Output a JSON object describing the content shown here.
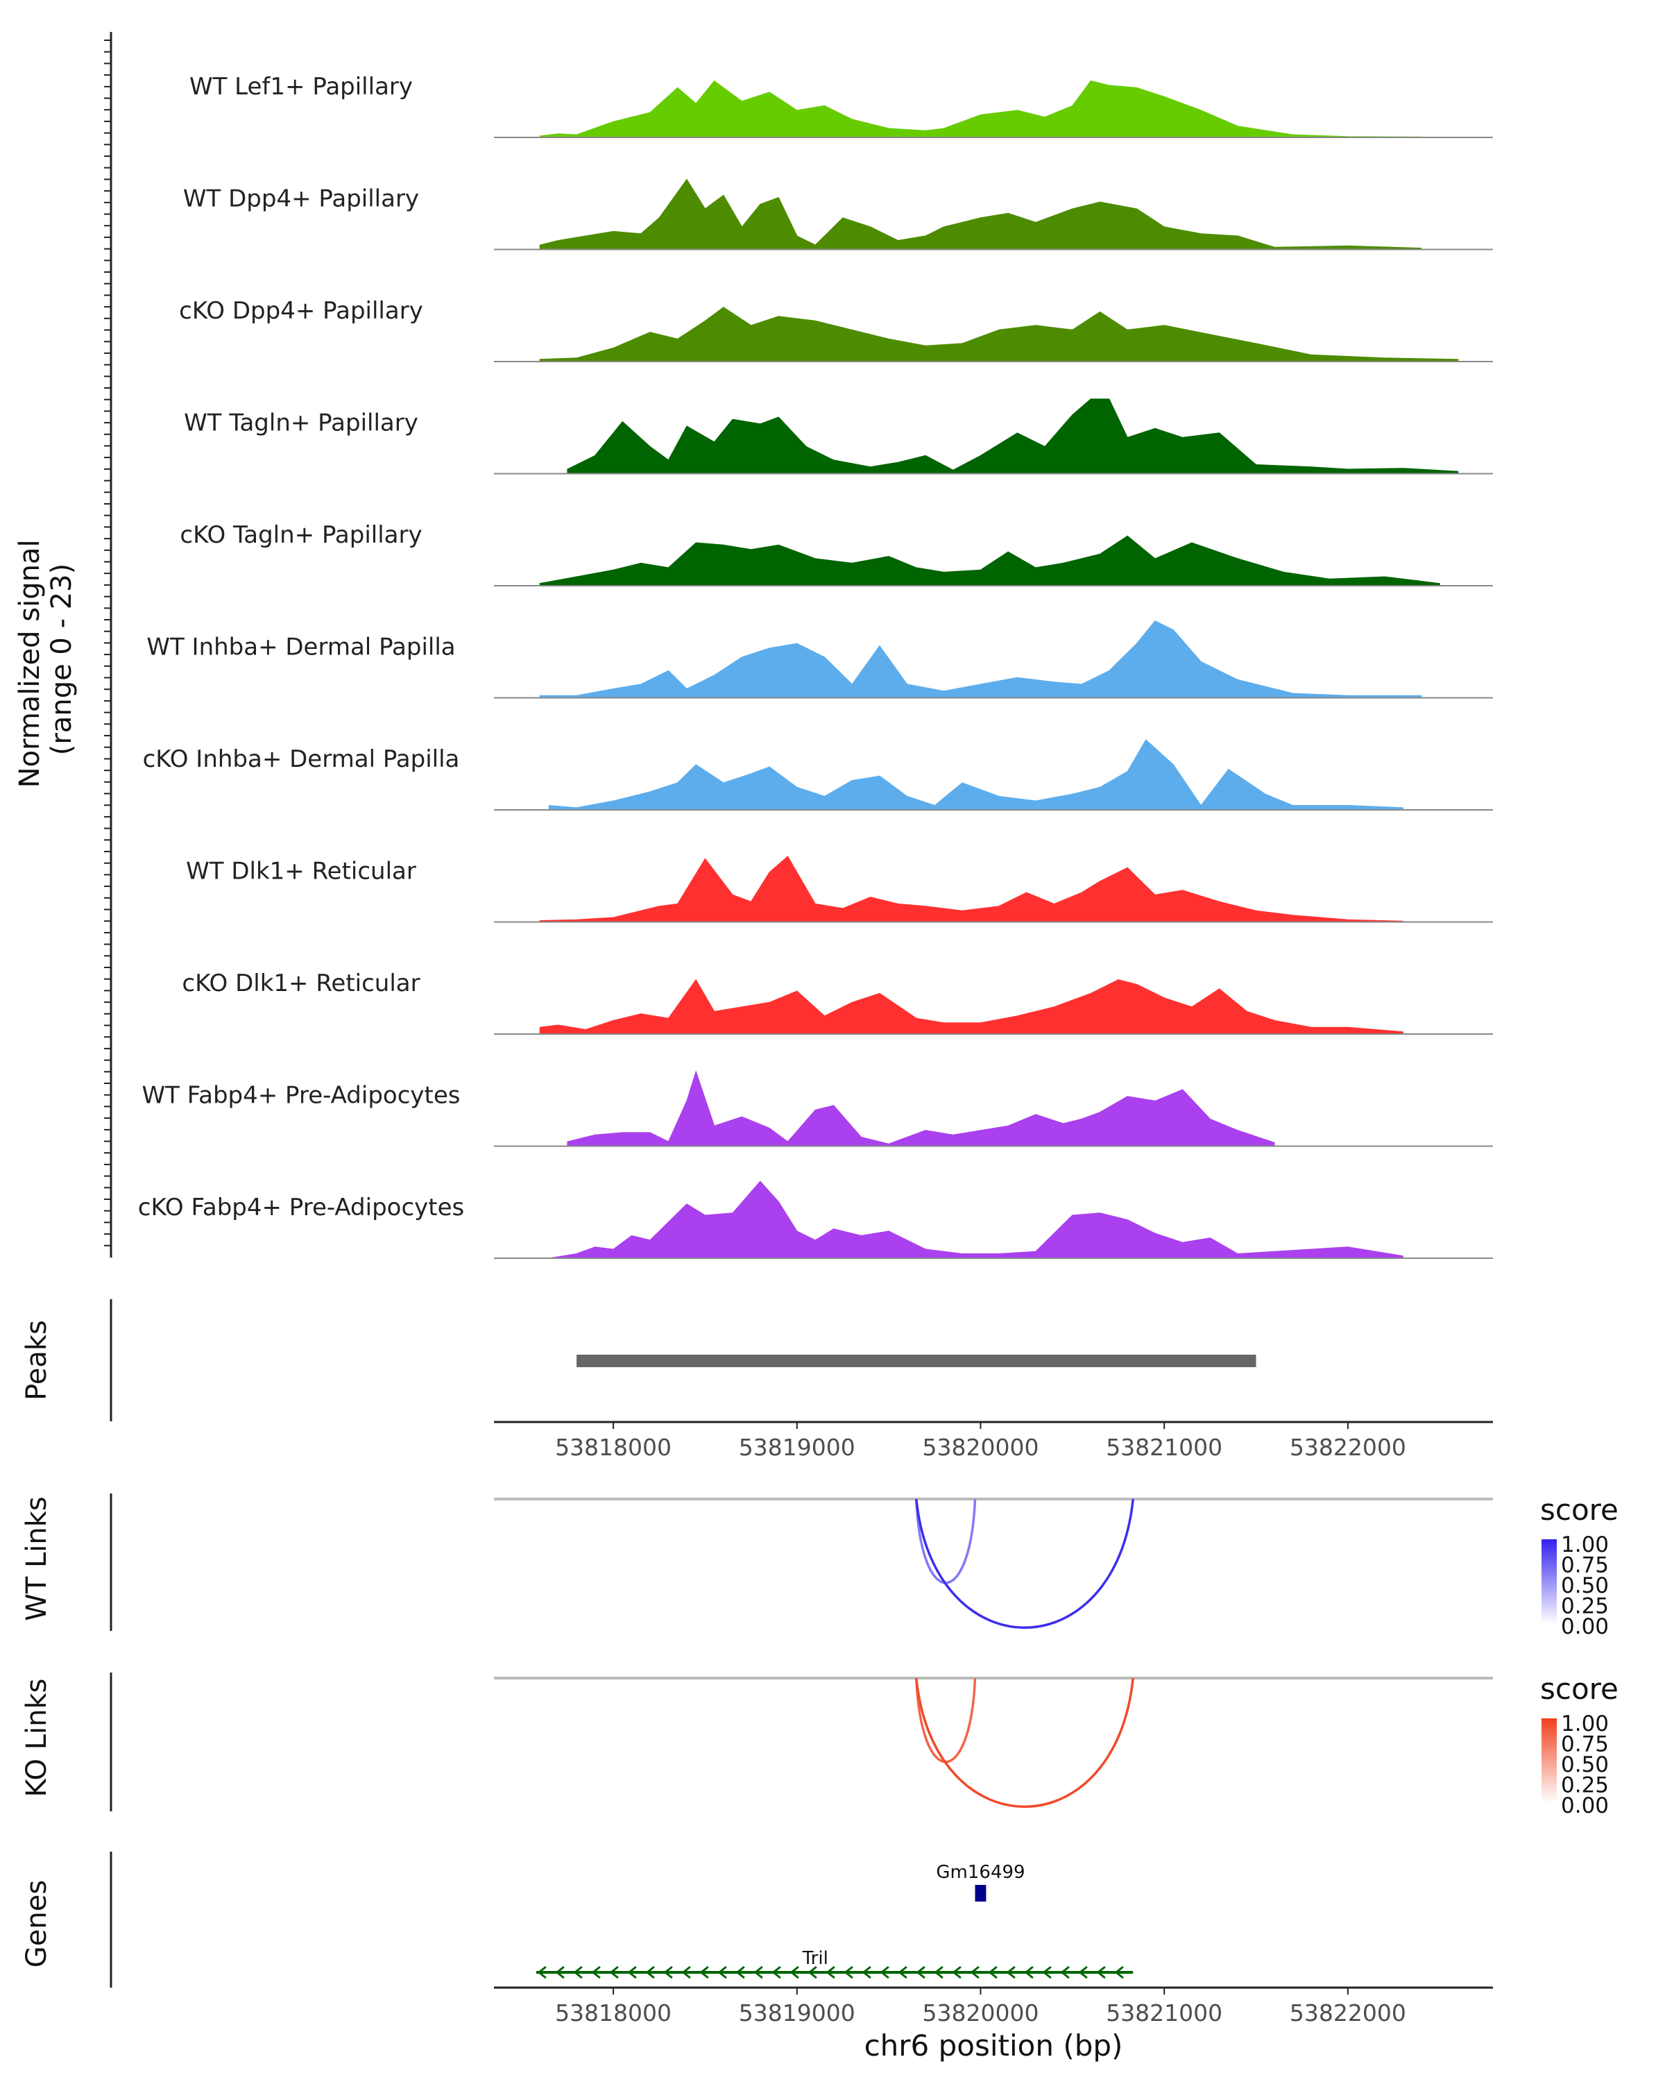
{
  "chart_data": {
    "type": "area",
    "title": "",
    "signal_axis_label": [
      "Normalized signal",
      "(range 0 - 23)"
    ],
    "signal_range": [
      0,
      23
    ],
    "xlabel": "chr6 position (bp)",
    "xlim": [
      53817350,
      53822790
    ],
    "x_ticks": [
      53818000,
      53819000,
      53820000,
      53821000,
      53822000
    ],
    "x_tick_labels": [
      "53818000",
      "53819000",
      "53820000",
      "53821000",
      "53822000"
    ],
    "tracks": [
      {
        "name": "WT Lef1+ Papillary",
        "color": "#66CC00",
        "x": [
          53817600,
          53817700,
          53817800,
          53818000,
          53818200,
          53818350,
          53818450,
          53818550,
          53818700,
          53818850,
          53819000,
          53819150,
          53819300,
          53819500,
          53819700,
          53819800,
          53820000,
          53820200,
          53820350,
          53820500,
          53820600,
          53820700,
          53820850,
          53821000,
          53821200,
          53821400,
          53821700,
          53822000,
          53822400
        ],
        "values": [
          0.3,
          0.8,
          0.6,
          3.5,
          5.5,
          11.0,
          7.5,
          12.5,
          8.0,
          10.0,
          6.0,
          7.0,
          4.0,
          2.0,
          1.5,
          2.0,
          5.0,
          6.0,
          4.5,
          7.0,
          12.5,
          11.5,
          11.0,
          9.0,
          6.0,
          2.5,
          0.6,
          0.2,
          0.1
        ]
      },
      {
        "name": "WT Dpp4+ Papillary",
        "color": "#4D8C00",
        "x": [
          53817600,
          53817700,
          53817850,
          53818000,
          53818150,
          53818250,
          53818400,
          53818500,
          53818600,
          53818700,
          53818800,
          53818900,
          53819000,
          53819100,
          53819250,
          53819400,
          53819550,
          53819700,
          53819800,
          53820000,
          53820150,
          53820300,
          53820500,
          53820650,
          53820850,
          53821000,
          53821200,
          53821400,
          53821600,
          53822000,
          53822400
        ],
        "values": [
          1.0,
          2.0,
          3.0,
          4.0,
          3.5,
          7.0,
          15.5,
          9.0,
          12.0,
          5.0,
          10.0,
          11.5,
          3.0,
          1.0,
          7.0,
          5.0,
          2.0,
          3.0,
          5.0,
          7.0,
          8.0,
          6.0,
          9.0,
          10.5,
          9.0,
          5.0,
          3.5,
          3.0,
          0.5,
          0.8,
          0.3
        ]
      },
      {
        "name": "cKO Dpp4+ Papillary",
        "color": "#4D8C00",
        "x": [
          53817600,
          53817800,
          53818000,
          53818200,
          53818350,
          53818500,
          53818600,
          53818750,
          53818900,
          53819100,
          53819300,
          53819500,
          53819700,
          53819900,
          53820100,
          53820300,
          53820500,
          53820650,
          53820800,
          53821000,
          53821250,
          53821500,
          53821800,
          53822200,
          53822600
        ],
        "values": [
          0.5,
          0.8,
          3.0,
          6.5,
          5.0,
          9.0,
          12.0,
          8.0,
          10.0,
          9.0,
          7.0,
          5.0,
          3.5,
          4.0,
          7.0,
          8.0,
          7.0,
          11.0,
          7.0,
          8.0,
          6.0,
          4.0,
          1.5,
          0.8,
          0.5
        ]
      },
      {
        "name": "WT Tagln+ Papillary",
        "color": "#006400",
        "x": [
          53817750,
          53817900,
          53818050,
          53818200,
          53818300,
          53818400,
          53818550,
          53818650,
          53818800,
          53818900,
          53819050,
          53819200,
          53819400,
          53819550,
          53819700,
          53819850,
          53820000,
          53820200,
          53820350,
          53820500,
          53820600,
          53820700,
          53820800,
          53820950,
          53821100,
          53821300,
          53821500,
          53821800,
          53822000,
          53822300,
          53822600
        ],
        "values": [
          1.0,
          4.0,
          11.5,
          6.0,
          3.0,
          10.5,
          7.0,
          12.0,
          11.0,
          12.5,
          6.0,
          3.0,
          1.5,
          2.5,
          4.0,
          0.8,
          4.0,
          9.0,
          6.0,
          13.0,
          16.5,
          16.5,
          8.0,
          10.0,
          8.0,
          9.0,
          2.0,
          1.5,
          1.0,
          1.2,
          0.5
        ]
      },
      {
        "name": "cKO Tagln+ Papillary",
        "color": "#006400",
        "x": [
          53817600,
          53817800,
          53818000,
          53818150,
          53818300,
          53818450,
          53818600,
          53818750,
          53818900,
          53819100,
          53819300,
          53819500,
          53819650,
          53819800,
          53820000,
          53820150,
          53820300,
          53820450,
          53820650,
          53820800,
          53820950,
          53821150,
          53821400,
          53821650,
          53821900,
          53822200,
          53822500
        ],
        "values": [
          0.5,
          2.0,
          3.5,
          5.0,
          4.0,
          9.5,
          9.0,
          8.0,
          9.0,
          6.0,
          5.0,
          6.5,
          4.0,
          3.0,
          3.5,
          7.5,
          4.0,
          5.0,
          7.0,
          11.0,
          6.0,
          9.5,
          6.0,
          3.0,
          1.5,
          2.0,
          0.5
        ]
      },
      {
        "name": "WT Inhba+ Dermal Papilla",
        "color": "#5DADEC",
        "x": [
          53817600,
          53817800,
          53818000,
          53818150,
          53818300,
          53818400,
          53818550,
          53818700,
          53818850,
          53819000,
          53819150,
          53819300,
          53819450,
          53819600,
          53819800,
          53820000,
          53820200,
          53820400,
          53820550,
          53820700,
          53820850,
          53820950,
          53821050,
          53821200,
          53821400,
          53821700,
          53822000,
          53822400
        ],
        "values": [
          0.5,
          0.5,
          2.0,
          3.0,
          6.0,
          2.0,
          5.0,
          9.0,
          11.0,
          12.0,
          9.0,
          3.0,
          11.5,
          3.0,
          1.5,
          3.0,
          4.5,
          3.5,
          3.0,
          6.0,
          12.0,
          17.0,
          15.0,
          8.0,
          4.0,
          1.0,
          0.5,
          0.5
        ]
      },
      {
        "name": "cKO Inhba+ Dermal Papilla",
        "color": "#5DADEC",
        "x": [
          53817650,
          53817800,
          53818000,
          53818200,
          53818350,
          53818450,
          53818600,
          53818750,
          53818850,
          53819000,
          53819150,
          53819300,
          53819450,
          53819600,
          53819750,
          53819900,
          53820100,
          53820300,
          53820500,
          53820650,
          53820800,
          53820900,
          53821050,
          53821200,
          53821350,
          53821550,
          53821700,
          53822000,
          53822300
        ],
        "values": [
          1.0,
          0.5,
          2.0,
          4.0,
          6.0,
          10.0,
          6.0,
          8.0,
          9.5,
          5.0,
          3.0,
          6.5,
          7.5,
          3.0,
          1.0,
          6.0,
          3.0,
          2.0,
          3.5,
          5.0,
          8.5,
          15.5,
          10.0,
          1.0,
          9.0,
          3.5,
          1.0,
          1.0,
          0.5
        ]
      },
      {
        "name": "WT Dlk1+ Reticular",
        "color": "#FF3030",
        "x": [
          53817600,
          53817800,
          53818000,
          53818150,
          53818250,
          53818350,
          53818500,
          53818650,
          53818750,
          53818850,
          53818950,
          53819100,
          53819250,
          53819400,
          53819550,
          53819700,
          53819900,
          53820100,
          53820250,
          53820400,
          53820550,
          53820650,
          53820800,
          53820950,
          53821100,
          53821300,
          53821500,
          53821700,
          53822000,
          53822300
        ],
        "values": [
          0.3,
          0.5,
          1.0,
          2.5,
          3.5,
          4.0,
          14.0,
          6.0,
          4.5,
          11.0,
          14.5,
          4.0,
          3.0,
          5.5,
          4.0,
          3.5,
          2.5,
          3.5,
          6.5,
          4.0,
          6.5,
          9.0,
          12.0,
          6.0,
          7.0,
          4.5,
          2.5,
          1.5,
          0.5,
          0.2
        ]
      },
      {
        "name": "cKO Dlk1+ Reticular",
        "color": "#FF3030",
        "x": [
          53817600,
          53817700,
          53817850,
          53818000,
          53818150,
          53818300,
          53818450,
          53818550,
          53818700,
          53818850,
          53819000,
          53819150,
          53819300,
          53819450,
          53819650,
          53819800,
          53820000,
          53820200,
          53820400,
          53820600,
          53820750,
          53820850,
          53821000,
          53821150,
          53821300,
          53821450,
          53821600,
          53821800,
          53822000,
          53822300
        ],
        "values": [
          1.5,
          2.0,
          1.0,
          3.0,
          4.5,
          3.5,
          12.0,
          5.0,
          6.0,
          7.0,
          9.5,
          4.0,
          7.0,
          9.0,
          3.5,
          2.5,
          2.5,
          4.0,
          6.0,
          9.0,
          12.0,
          11.0,
          8.0,
          6.0,
          10.0,
          5.0,
          3.0,
          1.5,
          1.5,
          0.5
        ]
      },
      {
        "name": "WT Fabp4+ Pre-Adipocytes",
        "color": "#AA40EE",
        "x": [
          53817750,
          53817900,
          53818050,
          53818200,
          53818300,
          53818400,
          53818450,
          53818550,
          53818700,
          53818850,
          53818950,
          53819100,
          53819200,
          53819350,
          53819500,
          53819700,
          53819850,
          53820000,
          53820150,
          53820300,
          53820450,
          53820550,
          53820650,
          53820800,
          53820950,
          53821100,
          53821250,
          53821400,
          53821600
        ],
        "values": [
          1.0,
          2.5,
          3.0,
          3.0,
          1.0,
          10.0,
          16.5,
          4.5,
          6.5,
          4.0,
          1.0,
          8.0,
          9.0,
          2.0,
          0.5,
          3.5,
          2.5,
          3.5,
          4.5,
          7.0,
          5.0,
          6.0,
          7.5,
          11.0,
          10.0,
          12.5,
          6.0,
          3.5,
          0.8
        ]
      },
      {
        "name": "cKO Fabp4+ Pre-Adipocytes",
        "color": "#AA40EE",
        "x": [
          53817650,
          53817800,
          53817900,
          53818000,
          53818100,
          53818200,
          53818400,
          53818500,
          53818650,
          53818800,
          53818900,
          53819000,
          53819100,
          53819200,
          53819350,
          53819500,
          53819700,
          53819900,
          53820100,
          53820300,
          53820500,
          53820650,
          53820800,
          53820950,
          53821100,
          53821250,
          53821400,
          53821600,
          53821800,
          53822000,
          53822300
        ],
        "values": [
          0.0,
          1.0,
          2.5,
          2.0,
          5.0,
          4.0,
          12.0,
          9.5,
          10.0,
          17.0,
          12.5,
          6.0,
          4.0,
          6.5,
          5.0,
          6.0,
          2.0,
          1.0,
          1.0,
          1.5,
          9.5,
          10.0,
          8.5,
          5.5,
          3.5,
          4.5,
          1.0,
          1.5,
          2.0,
          2.5,
          0.5
        ]
      }
    ],
    "peaks": {
      "label": "Peaks",
      "color": "#666666",
      "regions": [
        [
          53817800,
          53821500
        ]
      ]
    },
    "links": [
      {
        "label": "WT Links",
        "legend_title": "score",
        "legend_ticks": [
          "1.00",
          "0.75",
          "0.50",
          "0.25",
          "0.00"
        ],
        "legend_color": "#3322EE",
        "arcs": [
          {
            "start": 53819650,
            "end": 53819970,
            "score": 0.6
          },
          {
            "start": 53819650,
            "end": 53820830,
            "score": 0.95
          }
        ]
      },
      {
        "label": "KO Links",
        "legend_title": "score",
        "legend_ticks": [
          "1.00",
          "0.75",
          "0.50",
          "0.25",
          "0.00"
        ],
        "legend_color": "#F0401E",
        "arcs": [
          {
            "start": 53819650,
            "end": 53819970,
            "score": 0.8
          },
          {
            "start": 53819650,
            "end": 53820830,
            "score": 0.95
          }
        ]
      }
    ],
    "genes": {
      "label": "Genes",
      "items": [
        {
          "name": "Gm16499",
          "start": 53819970,
          "end": 53820030,
          "strand": "+",
          "color": "#00008B",
          "row": 0
        },
        {
          "name": "Tril",
          "start": 53817580,
          "end": 53820830,
          "strand": "-",
          "color": "#006400",
          "row": 1
        }
      ]
    }
  }
}
